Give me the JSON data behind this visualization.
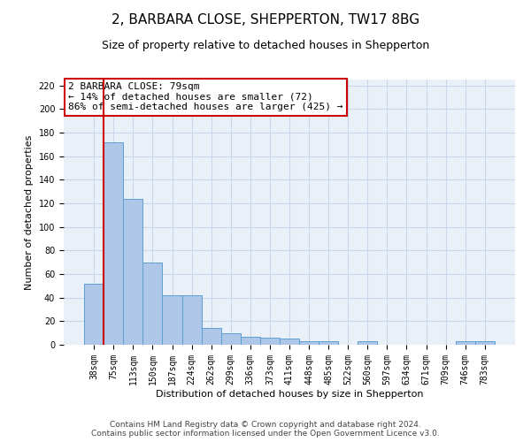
{
  "title": "2, BARBARA CLOSE, SHEPPERTON, TW17 8BG",
  "subtitle": "Size of property relative to detached houses in Shepperton",
  "xlabel": "Distribution of detached houses by size in Shepperton",
  "ylabel": "Number of detached properties",
  "categories": [
    "38sqm",
    "75sqm",
    "113sqm",
    "150sqm",
    "187sqm",
    "224sqm",
    "262sqm",
    "299sqm",
    "336sqm",
    "373sqm",
    "411sqm",
    "448sqm",
    "485sqm",
    "522sqm",
    "560sqm",
    "597sqm",
    "634sqm",
    "671sqm",
    "709sqm",
    "746sqm",
    "783sqm"
  ],
  "values": [
    52,
    172,
    124,
    70,
    42,
    42,
    14,
    10,
    7,
    6,
    5,
    3,
    3,
    0,
    3,
    0,
    0,
    0,
    0,
    3,
    3
  ],
  "bar_color": "#aec6e8",
  "bar_edge_color": "#5a9fd4",
  "property_line_x": 0.5,
  "property_line_color": "#cc0000",
  "annotation_text": "2 BARBARA CLOSE: 79sqm\n← 14% of detached houses are smaller (72)\n86% of semi-detached houses are larger (425) →",
  "annotation_box_color": "#ffffff",
  "annotation_box_edge_color": "#cc0000",
  "ylim": [
    0,
    225
  ],
  "yticks": [
    0,
    20,
    40,
    60,
    80,
    100,
    120,
    140,
    160,
    180,
    200,
    220
  ],
  "grid_color": "#c8d8e8",
  "background_color": "#eaf0f8",
  "footer_line1": "Contains HM Land Registry data © Crown copyright and database right 2024.",
  "footer_line2": "Contains public sector information licensed under the Open Government Licence v3.0.",
  "title_fontsize": 11,
  "subtitle_fontsize": 9,
  "axis_label_fontsize": 8,
  "tick_fontsize": 7,
  "annotation_fontsize": 8,
  "footer_fontsize": 6.5
}
